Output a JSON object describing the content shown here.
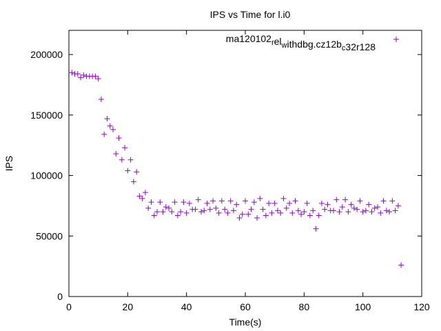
{
  "chart_data": {
    "type": "scatter",
    "title": "IPS vs Time for l.i0",
    "xlabel": "Time(s)",
    "ylabel": "IPS",
    "xlim": [
      0,
      120
    ],
    "ylim": [
      0,
      220000
    ],
    "xticks": [
      0,
      20,
      40,
      60,
      80,
      100,
      120
    ],
    "xtick_labels": [
      "0",
      "20",
      "40",
      "60",
      "80",
      "100",
      "120"
    ],
    "yticks": [
      0,
      50000,
      100000,
      150000,
      200000
    ],
    "ytick_labels": [
      "0",
      "50000",
      "100000",
      "150000",
      "200000"
    ],
    "grid": false,
    "legend_position": "top-right",
    "marker_color": "#9400d3",
    "series": [
      {
        "name": "ma120102_rel_withdbg.cz12b_c32r128",
        "legend_label": {
          "parts": [
            {
              "text": "ma120102",
              "sub": false
            },
            {
              "text": "r",
              "sub": true
            },
            {
              "text": "el",
              "sub": false
            },
            {
              "text": "w",
              "sub": true
            },
            {
              "text": "ithdbg.cz12b",
              "sub": false
            },
            {
              "text": "c",
              "sub": true
            },
            {
              "text": "32r128",
              "sub": false
            }
          ]
        },
        "x": [
          1,
          2,
          3,
          4,
          5,
          6,
          7,
          8,
          9,
          10,
          11,
          12,
          13,
          14,
          15,
          16,
          17,
          18,
          19,
          20,
          21,
          22,
          23,
          24,
          25,
          26,
          27,
          28,
          29,
          30,
          31,
          32,
          33,
          34,
          35,
          36,
          37,
          38,
          39,
          40,
          41,
          42,
          43,
          44,
          45,
          46,
          47,
          48,
          49,
          50,
          51,
          52,
          53,
          54,
          55,
          56,
          57,
          58,
          59,
          60,
          61,
          62,
          63,
          64,
          65,
          66,
          67,
          68,
          69,
          70,
          71,
          72,
          73,
          74,
          75,
          76,
          77,
          78,
          79,
          80,
          81,
          82,
          83,
          84,
          85,
          86,
          87,
          88,
          89,
          90,
          91,
          92,
          93,
          94,
          95,
          96,
          97,
          98,
          99,
          100,
          101,
          102,
          103,
          104,
          105,
          106,
          107,
          108,
          109,
          110,
          111,
          112,
          113
        ],
        "y": [
          185000,
          184000,
          184000,
          181000,
          183000,
          182000,
          182000,
          182000,
          182000,
          180000,
          163000,
          134000,
          147000,
          141000,
          138000,
          118000,
          131000,
          113000,
          123000,
          104000,
          113000,
          95000,
          103000,
          83000,
          81000,
          86000,
          73000,
          78000,
          67000,
          70000,
          78000,
          70000,
          74000,
          73000,
          70000,
          78000,
          67000,
          70000,
          78000,
          69000,
          77000,
          72000,
          72000,
          80000,
          70000,
          71000,
          77000,
          72000,
          79000,
          73000,
          69000,
          79000,
          72000,
          69000,
          79000,
          71000,
          76000,
          65000,
          68000,
          79000,
          68000,
          72000,
          78000,
          65000,
          81000,
          72000,
          67000,
          77000,
          69000,
          77000,
          71000,
          69000,
          81000,
          73000,
          77000,
          69000,
          79000,
          71000,
          68000,
          70000,
          77000,
          67000,
          71000,
          56000,
          67000,
          77000,
          72000,
          76000,
          71000,
          71000,
          80000,
          70000,
          74000,
          80000,
          70000,
          76000,
          73000,
          72000,
          79000,
          70000,
          71000,
          76000,
          70000,
          73000,
          74000,
          69000,
          79000,
          71000,
          70000,
          79000,
          71000,
          75000,
          26000
        ]
      }
    ]
  }
}
